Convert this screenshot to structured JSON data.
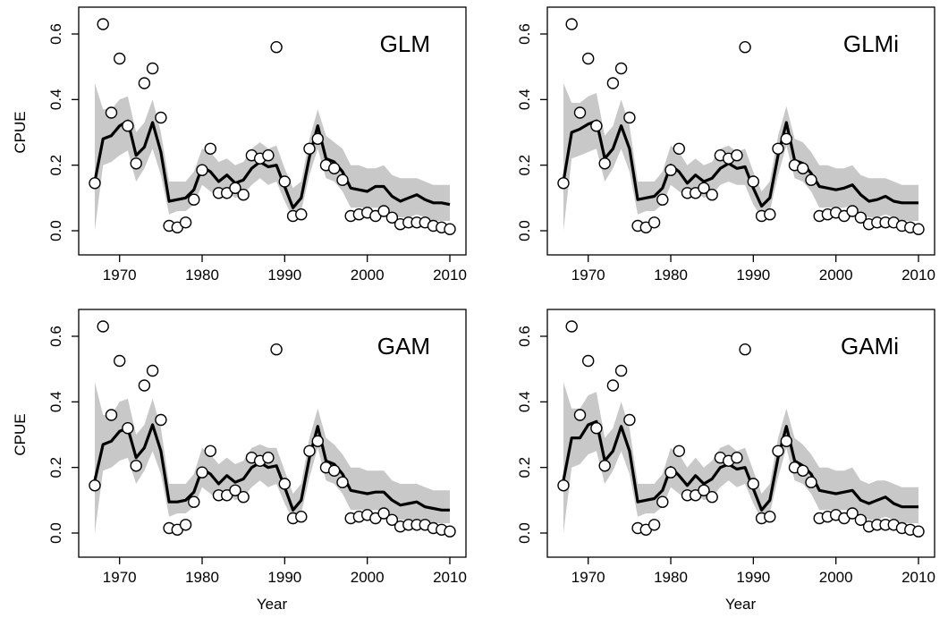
{
  "figure": {
    "xlabel": "Year",
    "ylabel": "CPUE"
  },
  "chart_data": [
    {
      "type": "line",
      "title": "GLM",
      "xlabel": "",
      "ylabel": "CPUE",
      "xlim": [
        1967,
        2010
      ],
      "ylim": [
        0,
        0.6
      ],
      "xticks": [
        1970,
        1980,
        1990,
        2000,
        2010
      ],
      "yticks": [
        0.0,
        0.2,
        0.4,
        0.6
      ],
      "ytick_labels": [
        "0.0",
        "0.2",
        "0.4",
        "0.6"
      ],
      "grid": false,
      "colors": {
        "band": "#c8c8c8",
        "line": "#000000",
        "point_fill": "#ffffff"
      },
      "observed": {
        "x": [
          1967,
          1968,
          1969,
          1970,
          1971,
          1972,
          1973,
          1974,
          1975,
          1976,
          1977,
          1978,
          1979,
          1980,
          1981,
          1982,
          1983,
          1984,
          1985,
          1986,
          1987,
          1988,
          1989,
          1990,
          1991,
          1992,
          1993,
          1994,
          1995,
          1996,
          1997,
          1998,
          1999,
          2000,
          2001,
          2002,
          2003,
          2004,
          2005,
          2006,
          2007,
          2008,
          2009,
          2010
        ],
        "y": [
          0.145,
          0.63,
          0.36,
          0.525,
          0.32,
          0.205,
          0.45,
          0.495,
          0.345,
          0.015,
          0.01,
          0.025,
          0.095,
          0.185,
          0.25,
          0.115,
          0.115,
          0.13,
          0.11,
          0.23,
          0.22,
          0.23,
          0.56,
          0.15,
          0.045,
          0.05,
          0.25,
          0.28,
          0.2,
          0.19,
          0.155,
          0.045,
          0.05,
          0.055,
          0.045,
          0.06,
          0.04,
          0.02,
          0.025,
          0.025,
          0.025,
          0.015,
          0.01,
          0.005
        ]
      },
      "fitted": {
        "x": [
          1967,
          1968,
          1969,
          1970,
          1971,
          1972,
          1973,
          1974,
          1975,
          1976,
          1977,
          1978,
          1979,
          1980,
          1981,
          1982,
          1983,
          1984,
          1985,
          1986,
          1987,
          1988,
          1989,
          1990,
          1991,
          1992,
          1993,
          1994,
          1995,
          1996,
          1997,
          1998,
          1999,
          2000,
          2001,
          2002,
          2003,
          2004,
          2005,
          2006,
          2007,
          2008,
          2009,
          2010
        ],
        "y": [
          0.15,
          0.28,
          0.29,
          0.32,
          0.335,
          0.23,
          0.255,
          0.33,
          0.24,
          0.09,
          0.095,
          0.1,
          0.125,
          0.195,
          0.18,
          0.15,
          0.17,
          0.145,
          0.155,
          0.19,
          0.21,
          0.195,
          0.2,
          0.135,
          0.07,
          0.1,
          0.225,
          0.32,
          0.22,
          0.21,
          0.18,
          0.13,
          0.125,
          0.12,
          0.135,
          0.135,
          0.105,
          0.09,
          0.1,
          0.11,
          0.095,
          0.085,
          0.085,
          0.08
        ]
      },
      "band_lower": [
        0.0,
        0.2,
        0.21,
        0.23,
        0.245,
        0.15,
        0.19,
        0.25,
        0.17,
        0.05,
        0.06,
        0.06,
        0.08,
        0.14,
        0.12,
        0.1,
        0.12,
        0.1,
        0.11,
        0.14,
        0.16,
        0.14,
        0.15,
        0.09,
        0.04,
        0.06,
        0.17,
        0.25,
        0.16,
        0.15,
        0.12,
        0.07,
        0.07,
        0.07,
        0.07,
        0.07,
        0.05,
        0.04,
        0.04,
        0.05,
        0.04,
        0.03,
        0.03,
        0.03
      ],
      "band_upper": [
        0.45,
        0.37,
        0.37,
        0.4,
        0.41,
        0.3,
        0.33,
        0.4,
        0.3,
        0.15,
        0.15,
        0.15,
        0.18,
        0.25,
        0.24,
        0.21,
        0.22,
        0.2,
        0.21,
        0.25,
        0.27,
        0.25,
        0.26,
        0.19,
        0.13,
        0.15,
        0.28,
        0.37,
        0.29,
        0.27,
        0.25,
        0.2,
        0.2,
        0.19,
        0.19,
        0.2,
        0.17,
        0.16,
        0.16,
        0.16,
        0.15,
        0.14,
        0.14,
        0.14
      ]
    },
    {
      "type": "line",
      "title": "GLMi",
      "xlabel": "",
      "ylabel": "",
      "xlim": [
        1967,
        2010
      ],
      "ylim": [
        0,
        0.6
      ],
      "xticks": [
        1970,
        1980,
        1990,
        2000,
        2010
      ],
      "yticks": [
        0.0,
        0.2,
        0.4,
        0.6
      ],
      "ytick_labels": [
        "0.0",
        "0.2",
        "0.4",
        "0.6"
      ],
      "grid": false,
      "colors": {
        "band": "#c8c8c8",
        "line": "#000000",
        "point_fill": "#ffffff"
      },
      "observed": {
        "x": [
          1967,
          1968,
          1969,
          1970,
          1971,
          1972,
          1973,
          1974,
          1975,
          1976,
          1977,
          1978,
          1979,
          1980,
          1981,
          1982,
          1983,
          1984,
          1985,
          1986,
          1987,
          1988,
          1989,
          1990,
          1991,
          1992,
          1993,
          1994,
          1995,
          1996,
          1997,
          1998,
          1999,
          2000,
          2001,
          2002,
          2003,
          2004,
          2005,
          2006,
          2007,
          2008,
          2009,
          2010
        ],
        "y": [
          0.145,
          0.63,
          0.36,
          0.525,
          0.32,
          0.205,
          0.45,
          0.495,
          0.345,
          0.015,
          0.01,
          0.025,
          0.095,
          0.185,
          0.25,
          0.115,
          0.115,
          0.13,
          0.11,
          0.23,
          0.22,
          0.23,
          0.56,
          0.15,
          0.045,
          0.05,
          0.25,
          0.28,
          0.2,
          0.19,
          0.155,
          0.045,
          0.05,
          0.055,
          0.045,
          0.06,
          0.04,
          0.02,
          0.025,
          0.025,
          0.025,
          0.015,
          0.01,
          0.005
        ]
      },
      "fitted": {
        "x": [
          1967,
          1968,
          1969,
          1970,
          1971,
          1972,
          1973,
          1974,
          1975,
          1976,
          1977,
          1978,
          1979,
          1980,
          1981,
          1982,
          1983,
          1984,
          1985,
          1986,
          1987,
          1988,
          1989,
          1990,
          1991,
          1992,
          1993,
          1994,
          1995,
          1996,
          1997,
          1998,
          1999,
          2000,
          2001,
          2002,
          2003,
          2004,
          2005,
          2006,
          2007,
          2008,
          2009,
          2010
        ],
        "y": [
          0.15,
          0.3,
          0.31,
          0.325,
          0.335,
          0.22,
          0.25,
          0.32,
          0.25,
          0.095,
          0.1,
          0.105,
          0.13,
          0.2,
          0.18,
          0.145,
          0.17,
          0.15,
          0.16,
          0.19,
          0.205,
          0.19,
          0.195,
          0.13,
          0.075,
          0.1,
          0.23,
          0.33,
          0.215,
          0.205,
          0.175,
          0.135,
          0.13,
          0.125,
          0.13,
          0.14,
          0.11,
          0.09,
          0.095,
          0.105,
          0.09,
          0.085,
          0.085,
          0.085
        ]
      },
      "band_lower": [
        0.0,
        0.22,
        0.23,
        0.24,
        0.25,
        0.15,
        0.19,
        0.25,
        0.18,
        0.05,
        0.06,
        0.06,
        0.08,
        0.14,
        0.12,
        0.1,
        0.12,
        0.1,
        0.11,
        0.14,
        0.15,
        0.14,
        0.14,
        0.08,
        0.04,
        0.06,
        0.17,
        0.26,
        0.16,
        0.15,
        0.12,
        0.07,
        0.07,
        0.07,
        0.07,
        0.08,
        0.05,
        0.04,
        0.04,
        0.05,
        0.04,
        0.03,
        0.03,
        0.03
      ],
      "band_upper": [
        0.45,
        0.39,
        0.39,
        0.41,
        0.42,
        0.29,
        0.32,
        0.4,
        0.32,
        0.15,
        0.15,
        0.15,
        0.18,
        0.26,
        0.24,
        0.2,
        0.22,
        0.2,
        0.21,
        0.25,
        0.26,
        0.24,
        0.25,
        0.18,
        0.12,
        0.15,
        0.29,
        0.38,
        0.28,
        0.27,
        0.24,
        0.2,
        0.2,
        0.19,
        0.19,
        0.2,
        0.17,
        0.16,
        0.16,
        0.16,
        0.15,
        0.14,
        0.14,
        0.14
      ]
    },
    {
      "type": "line",
      "title": "GAM",
      "xlabel": "Year",
      "ylabel": "CPUE",
      "xlim": [
        1967,
        2010
      ],
      "ylim": [
        0,
        0.6
      ],
      "xticks": [
        1970,
        1980,
        1990,
        2000,
        2010
      ],
      "yticks": [
        0.0,
        0.2,
        0.4,
        0.6
      ],
      "ytick_labels": [
        "0.0",
        "0.2",
        "0.4",
        "0.6"
      ],
      "grid": false,
      "colors": {
        "band": "#c8c8c8",
        "line": "#000000",
        "point_fill": "#ffffff"
      },
      "observed": {
        "x": [
          1967,
          1968,
          1969,
          1970,
          1971,
          1972,
          1973,
          1974,
          1975,
          1976,
          1977,
          1978,
          1979,
          1980,
          1981,
          1982,
          1983,
          1984,
          1985,
          1986,
          1987,
          1988,
          1989,
          1990,
          1991,
          1992,
          1993,
          1994,
          1995,
          1996,
          1997,
          1998,
          1999,
          2000,
          2001,
          2002,
          2003,
          2004,
          2005,
          2006,
          2007,
          2008,
          2009,
          2010
        ],
        "y": [
          0.145,
          0.63,
          0.36,
          0.525,
          0.32,
          0.205,
          0.45,
          0.495,
          0.345,
          0.015,
          0.01,
          0.025,
          0.095,
          0.185,
          0.25,
          0.115,
          0.115,
          0.13,
          0.11,
          0.23,
          0.22,
          0.23,
          0.56,
          0.15,
          0.045,
          0.05,
          0.25,
          0.28,
          0.2,
          0.19,
          0.155,
          0.045,
          0.05,
          0.055,
          0.045,
          0.06,
          0.04,
          0.02,
          0.025,
          0.025,
          0.025,
          0.015,
          0.01,
          0.005
        ]
      },
      "fitted": {
        "x": [
          1967,
          1968,
          1969,
          1970,
          1971,
          1972,
          1973,
          1974,
          1975,
          1976,
          1977,
          1978,
          1979,
          1980,
          1981,
          1982,
          1983,
          1984,
          1985,
          1986,
          1987,
          1988,
          1989,
          1990,
          1991,
          1992,
          1993,
          1994,
          1995,
          1996,
          1997,
          1998,
          1999,
          2000,
          2001,
          2002,
          2003,
          2004,
          2005,
          2006,
          2007,
          2008,
          2009,
          2010
        ],
        "y": [
          0.16,
          0.27,
          0.28,
          0.31,
          0.32,
          0.23,
          0.26,
          0.33,
          0.25,
          0.095,
          0.095,
          0.1,
          0.125,
          0.195,
          0.18,
          0.15,
          0.175,
          0.155,
          0.165,
          0.2,
          0.215,
          0.2,
          0.205,
          0.14,
          0.07,
          0.1,
          0.23,
          0.325,
          0.22,
          0.21,
          0.18,
          0.13,
          0.125,
          0.12,
          0.125,
          0.125,
          0.1,
          0.085,
          0.09,
          0.095,
          0.08,
          0.075,
          0.07,
          0.07
        ]
      },
      "band_lower": [
        0.0,
        0.19,
        0.2,
        0.22,
        0.23,
        0.15,
        0.19,
        0.25,
        0.18,
        0.05,
        0.06,
        0.06,
        0.08,
        0.14,
        0.12,
        0.1,
        0.12,
        0.1,
        0.11,
        0.14,
        0.16,
        0.14,
        0.15,
        0.09,
        0.04,
        0.06,
        0.17,
        0.26,
        0.16,
        0.15,
        0.12,
        0.07,
        0.07,
        0.07,
        0.07,
        0.07,
        0.05,
        0.04,
        0.04,
        0.04,
        0.04,
        0.03,
        0.03,
        0.03
      ],
      "band_upper": [
        0.46,
        0.36,
        0.36,
        0.4,
        0.41,
        0.3,
        0.33,
        0.41,
        0.32,
        0.15,
        0.15,
        0.15,
        0.18,
        0.26,
        0.24,
        0.21,
        0.23,
        0.21,
        0.22,
        0.26,
        0.27,
        0.26,
        0.26,
        0.19,
        0.12,
        0.15,
        0.29,
        0.38,
        0.29,
        0.27,
        0.24,
        0.2,
        0.2,
        0.19,
        0.19,
        0.19,
        0.16,
        0.15,
        0.15,
        0.15,
        0.14,
        0.13,
        0.13,
        0.13
      ]
    },
    {
      "type": "line",
      "title": "GAMi",
      "xlabel": "Year",
      "ylabel": "",
      "xlim": [
        1967,
        2010
      ],
      "ylim": [
        0,
        0.6
      ],
      "xticks": [
        1970,
        1980,
        1990,
        2000,
        2010
      ],
      "yticks": [
        0.0,
        0.2,
        0.4,
        0.6
      ],
      "ytick_labels": [
        "0.0",
        "0.2",
        "0.4",
        "0.6"
      ],
      "grid": false,
      "colors": {
        "band": "#c8c8c8",
        "line": "#000000",
        "point_fill": "#ffffff"
      },
      "observed": {
        "x": [
          1967,
          1968,
          1969,
          1970,
          1971,
          1972,
          1973,
          1974,
          1975,
          1976,
          1977,
          1978,
          1979,
          1980,
          1981,
          1982,
          1983,
          1984,
          1985,
          1986,
          1987,
          1988,
          1989,
          1990,
          1991,
          1992,
          1993,
          1994,
          1995,
          1996,
          1997,
          1998,
          1999,
          2000,
          2001,
          2002,
          2003,
          2004,
          2005,
          2006,
          2007,
          2008,
          2009,
          2010
        ],
        "y": [
          0.145,
          0.63,
          0.36,
          0.525,
          0.32,
          0.205,
          0.45,
          0.495,
          0.345,
          0.015,
          0.01,
          0.025,
          0.095,
          0.185,
          0.25,
          0.115,
          0.115,
          0.13,
          0.11,
          0.23,
          0.22,
          0.23,
          0.56,
          0.15,
          0.045,
          0.05,
          0.25,
          0.28,
          0.2,
          0.19,
          0.155,
          0.045,
          0.05,
          0.055,
          0.045,
          0.06,
          0.04,
          0.02,
          0.025,
          0.025,
          0.025,
          0.015,
          0.01,
          0.005
        ]
      },
      "fitted": {
        "x": [
          1967,
          1968,
          1969,
          1970,
          1971,
          1972,
          1973,
          1974,
          1975,
          1976,
          1977,
          1978,
          1979,
          1980,
          1981,
          1982,
          1983,
          1984,
          1985,
          1986,
          1987,
          1988,
          1989,
          1990,
          1991,
          1992,
          1993,
          1994,
          1995,
          1996,
          1997,
          1998,
          1999,
          2000,
          2001,
          2002,
          2003,
          2004,
          2005,
          2006,
          2007,
          2008,
          2009,
          2010
        ],
        "y": [
          0.16,
          0.29,
          0.29,
          0.33,
          0.34,
          0.22,
          0.25,
          0.325,
          0.25,
          0.095,
          0.1,
          0.105,
          0.13,
          0.2,
          0.175,
          0.145,
          0.175,
          0.15,
          0.165,
          0.2,
          0.21,
          0.195,
          0.2,
          0.135,
          0.07,
          0.1,
          0.23,
          0.325,
          0.22,
          0.205,
          0.18,
          0.13,
          0.125,
          0.12,
          0.125,
          0.13,
          0.1,
          0.09,
          0.1,
          0.11,
          0.09,
          0.08,
          0.08,
          0.08
        ]
      },
      "band_lower": [
        0.0,
        0.2,
        0.21,
        0.24,
        0.25,
        0.15,
        0.19,
        0.25,
        0.18,
        0.05,
        0.06,
        0.06,
        0.08,
        0.14,
        0.12,
        0.1,
        0.12,
        0.1,
        0.11,
        0.14,
        0.16,
        0.14,
        0.15,
        0.09,
        0.04,
        0.06,
        0.17,
        0.26,
        0.16,
        0.15,
        0.12,
        0.07,
        0.07,
        0.07,
        0.07,
        0.07,
        0.05,
        0.04,
        0.04,
        0.05,
        0.04,
        0.03,
        0.03,
        0.03
      ],
      "band_upper": [
        0.46,
        0.38,
        0.38,
        0.42,
        0.43,
        0.29,
        0.32,
        0.4,
        0.32,
        0.15,
        0.15,
        0.15,
        0.18,
        0.26,
        0.24,
        0.2,
        0.23,
        0.2,
        0.22,
        0.26,
        0.27,
        0.25,
        0.26,
        0.19,
        0.12,
        0.15,
        0.29,
        0.38,
        0.29,
        0.27,
        0.24,
        0.2,
        0.2,
        0.19,
        0.19,
        0.2,
        0.16,
        0.15,
        0.16,
        0.16,
        0.15,
        0.14,
        0.14,
        0.14
      ]
    }
  ]
}
